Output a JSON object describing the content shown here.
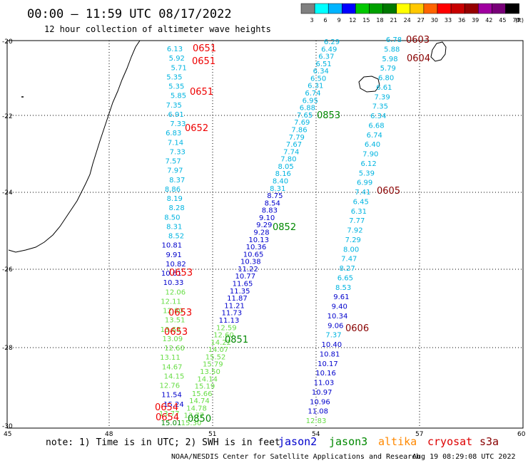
{
  "header": {
    "title": "00:00 – 11:59 UTC 08/17/2022",
    "subtitle": "12 hour collection of altimeter wave heights"
  },
  "legend": {
    "unit": "(ft)",
    "bins": [
      {
        "label": "3",
        "color": "#808080"
      },
      {
        "label": "6",
        "color": "#00ffff"
      },
      {
        "label": "9",
        "color": "#00b4ff"
      },
      {
        "label": "12",
        "color": "#0000ff"
      },
      {
        "label": "15",
        "color": "#00c800"
      },
      {
        "label": "18",
        "color": "#00a000"
      },
      {
        "label": "21",
        "color": "#007800"
      },
      {
        "label": "24",
        "color": "#ffff00"
      },
      {
        "label": "27",
        "color": "#ffc800"
      },
      {
        "label": "30",
        "color": "#ff6400"
      },
      {
        "label": "33",
        "color": "#ff0000"
      },
      {
        "label": "36",
        "color": "#c80000"
      },
      {
        "label": "39",
        "color": "#960000"
      },
      {
        "label": "42",
        "color": "#a000a0"
      },
      {
        "label": "45",
        "color": "#780078"
      },
      {
        "label": "70",
        "color": "#000000"
      }
    ]
  },
  "axes": {
    "lat_ticks": [
      "-20",
      "-22",
      "-24",
      "-26",
      "-28",
      "-30"
    ],
    "lon_ticks": [
      "45",
      "48",
      "51",
      "54",
      "57",
      "60"
    ]
  },
  "footer": {
    "note": "note: 1) Time is in UTC; 2) SWH is in feet",
    "credit": "NOAA/NESDIS Center for Satellite Applications and Research",
    "timestamp": "Aug 19 08:29:08 UTC 2022",
    "satellites": [
      {
        "name": "jason2",
        "color": "#0000cc"
      },
      {
        "name": "jason3",
        "color": "#008800"
      },
      {
        "name": "altika",
        "color": "#ff8800"
      },
      {
        "name": "cryosat",
        "color": "#dd0000"
      },
      {
        "name": "s3a",
        "color": "#880000"
      }
    ]
  },
  "colors": {
    "cyan": "#00b4e0",
    "blue": "#0000cc",
    "green": "#00aa00",
    "lightgreen": "#66dd44",
    "dkgreen": "#008800",
    "red": "#ee0000",
    "maroon": "#880000"
  },
  "time_labels": [
    {
      "text": "0651",
      "color": "red"
    },
    {
      "text": "0651",
      "color": "red"
    },
    {
      "text": "0651",
      "color": "red"
    },
    {
      "text": "0652",
      "color": "red"
    },
    {
      "text": "0653",
      "color": "red"
    },
    {
      "text": "0653",
      "color": "red"
    },
    {
      "text": "0653",
      "color": "red"
    },
    {
      "text": "0654",
      "color": "red"
    },
    {
      "text": "0654",
      "color": "red"
    },
    {
      "text": "0603",
      "color": "maroon"
    },
    {
      "text": "0604",
      "color": "maroon"
    },
    {
      "text": "0605",
      "color": "maroon"
    },
    {
      "text": "0606",
      "color": "maroon"
    },
    {
      "text": "0853",
      "color": "dkgreen"
    },
    {
      "text": "0852",
      "color": "dkgreen"
    },
    {
      "text": "0851",
      "color": "dkgreen"
    },
    {
      "text": "0850",
      "color": "dkgreen"
    }
  ],
  "tracks": [
    {
      "name": "cryosat-track",
      "values": [
        "6.13",
        "5.92",
        "5.71",
        "5.35",
        "5.35",
        "5.85",
        "7.35",
        "6.91",
        "7.33",
        "6.83",
        "7.14",
        "7.33",
        "7.57",
        "7.97",
        "8.37",
        "8.86",
        "8.19",
        "8.28",
        "8.50",
        "8.31",
        "8.52",
        "10.81",
        "9.91",
        "10.82",
        "10.61",
        "10.33",
        "12.06",
        "12.11",
        "12.80",
        "13.51",
        "13.63",
        "13.09",
        "12.60",
        "13.11",
        "14.67",
        "14.15",
        "12.76",
        "11.54",
        "15.24",
        "13.77",
        "15.01"
      ],
      "colors": [
        "cyan",
        "cyan",
        "cyan",
        "cyan",
        "cyan",
        "cyan",
        "cyan",
        "cyan",
        "cyan",
        "cyan",
        "cyan",
        "cyan",
        "cyan",
        "cyan",
        "cyan",
        "cyan",
        "cyan",
        "cyan",
        "cyan",
        "cyan",
        "cyan",
        "blue",
        "blue",
        "blue",
        "blue",
        "blue",
        "lightgreen",
        "lightgreen",
        "lightgreen",
        "lightgreen",
        "lightgreen",
        "lightgreen",
        "lightgreen",
        "lightgreen",
        "lightgreen",
        "lightgreen",
        "lightgreen",
        "blue",
        "blue",
        "lightgreen",
        "dkgreen"
      ]
    },
    {
      "name": "jason3-track",
      "values": [
        "6.29",
        "6.49",
        "6.37",
        "6.51",
        "6.34",
        "6.50",
        "6.31",
        "6.74",
        "6.95",
        "6.88",
        "7.65",
        "7.69",
        "7.86",
        "7.79",
        "7.67",
        "7.74",
        "7.80",
        "8.05",
        "8.16",
        "8.40",
        "8.31",
        "8.75",
        "8.54",
        "8.83",
        "9.10",
        "9.29",
        "9.28",
        "10.13",
        "10.36",
        "10.65",
        "10.38",
        "11.22",
        "10.77",
        "11.65",
        "11.35",
        "11.87",
        "11.21",
        "11.73",
        "11.13",
        "12.59",
        "12.60",
        "14.22",
        "14.07",
        "15.52",
        "15.79",
        "13.50",
        "14.14",
        "15.19",
        "15.66",
        "14.74",
        "14.78",
        "13.77",
        "15.30"
      ],
      "colors": [
        "cyan",
        "cyan",
        "cyan",
        "cyan",
        "cyan",
        "cyan",
        "cyan",
        "cyan",
        "cyan",
        "cyan",
        "cyan",
        "cyan",
        "cyan",
        "cyan",
        "cyan",
        "cyan",
        "cyan",
        "cyan",
        "cyan",
        "cyan",
        "cyan",
        "blue",
        "blue",
        "blue",
        "blue",
        "blue",
        "blue",
        "blue",
        "blue",
        "blue",
        "blue",
        "blue",
        "blue",
        "blue",
        "blue",
        "blue",
        "blue",
        "blue",
        "blue",
        "lightgreen",
        "lightgreen",
        "lightgreen",
        "lightgreen",
        "lightgreen",
        "lightgreen",
        "lightgreen",
        "lightgreen",
        "lightgreen",
        "lightgreen",
        "lightgreen",
        "lightgreen",
        "lightgreen",
        "lightgreen"
      ]
    },
    {
      "name": "s3a-track",
      "values": [
        "6.78",
        "5.88",
        "5.98",
        "5.79",
        "6.80",
        "6.61",
        "7.39",
        "7.35",
        "6.34",
        "6.68",
        "6.74",
        "6.40",
        "7.90",
        "6.12",
        "5.39",
        "6.99",
        "7.41",
        "6.45",
        "6.31",
        "7.77",
        "7.92",
        "7.29",
        "8.00",
        "7.47",
        "8.27",
        "6.65",
        "8.53",
        "9.61",
        "9.40",
        "10.34",
        "9.06",
        "7.37",
        "10.40",
        "10.81",
        "10.17",
        "10.16",
        "11.03",
        "10.97",
        "10.96",
        "11.08",
        "12.83"
      ],
      "colors": [
        "cyan",
        "cyan",
        "cyan",
        "cyan",
        "cyan",
        "cyan",
        "cyan",
        "cyan",
        "cyan",
        "cyan",
        "cyan",
        "cyan",
        "cyan",
        "cyan",
        "cyan",
        "cyan",
        "cyan",
        "cyan",
        "cyan",
        "cyan",
        "cyan",
        "cyan",
        "cyan",
        "cyan",
        "cyan",
        "cyan",
        "cyan",
        "blue",
        "blue",
        "blue",
        "blue",
        "cyan",
        "blue",
        "blue",
        "blue",
        "blue",
        "blue",
        "blue",
        "blue",
        "blue",
        "lightgreen"
      ]
    }
  ]
}
